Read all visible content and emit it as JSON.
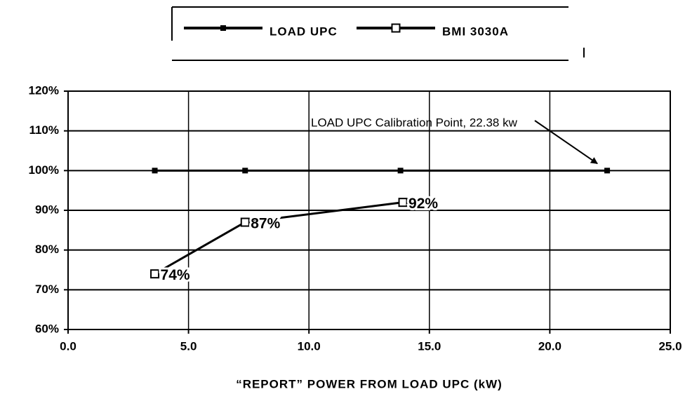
{
  "chart_data": {
    "type": "line",
    "x_label": "“REPORT” POWER FROM LOAD UPC (kW)",
    "annotation": "LOAD UPC Calibration Point, 22.38 kw",
    "xlim": [
      0,
      25
    ],
    "xticks": [
      {
        "value": 0,
        "label": "0.0"
      },
      {
        "value": 5,
        "label": "5.0"
      },
      {
        "value": 10,
        "label": "10.0"
      },
      {
        "value": 15,
        "label": "15.0"
      },
      {
        "value": 20,
        "label": "20.0"
      },
      {
        "value": 25,
        "label": "25.0"
      }
    ],
    "ylim": [
      60,
      120
    ],
    "yticks": [
      {
        "value": 60,
        "label": "60%"
      },
      {
        "value": 70,
        "label": "70%"
      },
      {
        "value": 80,
        "label": "80%"
      },
      {
        "value": 90,
        "label": "90%"
      },
      {
        "value": 100,
        "label": "100%"
      },
      {
        "value": 110,
        "label": "110%"
      },
      {
        "value": 120,
        "label": "120%"
      }
    ],
    "grid": true,
    "series": [
      {
        "name": "LOAD UPC",
        "color": "#000000",
        "marker": "filled-square",
        "x": [
          3.6,
          7.35,
          13.8,
          22.38
        ],
        "values": [
          100,
          100,
          100,
          100
        ]
      },
      {
        "name": "BMI 3030A",
        "color": "#000000",
        "marker": "open-square",
        "x": [
          3.6,
          7.35,
          13.9
        ],
        "values": [
          74,
          87,
          92
        ],
        "value_labels": [
          "74%",
          "87%",
          "92%"
        ]
      }
    ]
  }
}
